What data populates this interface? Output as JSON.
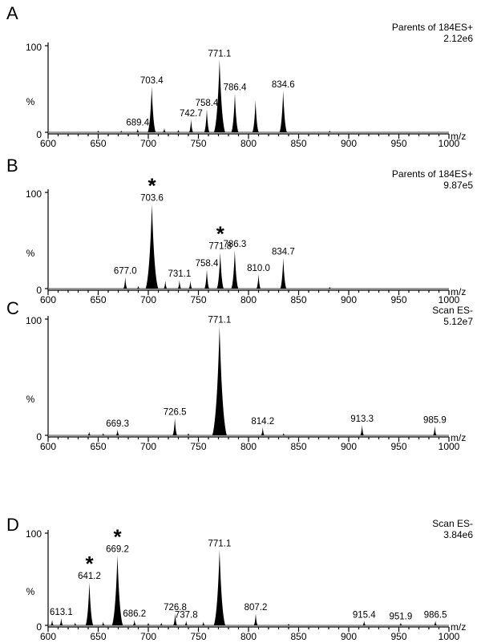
{
  "chart_data": [
    {
      "type": "mass-spectrum",
      "panel": "A",
      "header": "Parents of 184ES+",
      "intensity": "2.12e6",
      "xlabel": "m/z",
      "ylabel": "%",
      "xlim": [
        600,
        1000
      ],
      "ylim": [
        0,
        100
      ],
      "x_ticks": [
        "600",
        "650",
        "700",
        "750",
        "800",
        "850",
        "900",
        "950",
        "1000"
      ],
      "y_ticks": [
        "0",
        "100"
      ],
      "peaks": [
        {
          "x": 650,
          "y": 2
        },
        {
          "x": 673,
          "y": 2
        },
        {
          "x": 689.4,
          "y": 4,
          "label": "689.4"
        },
        {
          "x": 703.4,
          "y": 53,
          "label": "703.4"
        },
        {
          "x": 716,
          "y": 5
        },
        {
          "x": 730,
          "y": 3
        },
        {
          "x": 742.7,
          "y": 15,
          "label": "742.7"
        },
        {
          "x": 758.4,
          "y": 27,
          "label": "758.4"
        },
        {
          "x": 771.1,
          "y": 84,
          "label": "771.1"
        },
        {
          "x": 786.4,
          "y": 45,
          "label": "786.4"
        },
        {
          "x": 807,
          "y": 37
        },
        {
          "x": 834.6,
          "y": 48,
          "label": "834.6"
        },
        {
          "x": 881,
          "y": 2
        }
      ],
      "stars": []
    },
    {
      "type": "mass-spectrum",
      "panel": "B",
      "header": "Parents of 184ES+",
      "intensity": "9.87e5",
      "xlabel": "m/z",
      "ylabel": "%",
      "xlim": [
        600,
        1000
      ],
      "ylim": [
        0,
        100
      ],
      "x_ticks": [
        "600",
        "650",
        "700",
        "750",
        "800",
        "850",
        "900",
        "950",
        "1000"
      ],
      "y_ticks": [
        "0",
        "100"
      ],
      "peaks": [
        {
          "x": 677.0,
          "y": 12,
          "label": "677.0"
        },
        {
          "x": 690,
          "y": 3
        },
        {
          "x": 703.6,
          "y": 88,
          "label": "703.6"
        },
        {
          "x": 717,
          "y": 8
        },
        {
          "x": 731.1,
          "y": 9,
          "label": "731.1"
        },
        {
          "x": 742,
          "y": 8
        },
        {
          "x": 758.4,
          "y": 20,
          "label": "758.4"
        },
        {
          "x": 771.8,
          "y": 38,
          "label": "771.8"
        },
        {
          "x": 786.3,
          "y": 40,
          "label": "786.3"
        },
        {
          "x": 810.0,
          "y": 15,
          "label": "810.0"
        },
        {
          "x": 834.7,
          "y": 32,
          "label": "834.7"
        },
        {
          "x": 881,
          "y": 2
        }
      ],
      "stars": [
        703.6,
        771.8
      ]
    },
    {
      "type": "mass-spectrum",
      "panel": "C",
      "header": "Scan ES-",
      "intensity": "5.12e7",
      "xlabel": "m/z",
      "ylabel": "%",
      "xlim": [
        600,
        1000
      ],
      "ylim": [
        0,
        100
      ],
      "x_ticks": [
        "600",
        "650",
        "700",
        "750",
        "800",
        "850",
        "900",
        "950",
        "1000"
      ],
      "y_ticks": [
        "0",
        "100"
      ],
      "peaks": [
        {
          "x": 641,
          "y": 3
        },
        {
          "x": 655,
          "y": 2
        },
        {
          "x": 669.3,
          "y": 5,
          "label": "669.3"
        },
        {
          "x": 726.5,
          "y": 15,
          "label": "726.5"
        },
        {
          "x": 740,
          "y": 2
        },
        {
          "x": 771.1,
          "y": 94,
          "label": "771.1"
        },
        {
          "x": 814.2,
          "y": 7,
          "label": "814.2"
        },
        {
          "x": 835,
          "y": 2
        },
        {
          "x": 913.3,
          "y": 9,
          "label": "913.3"
        },
        {
          "x": 985.9,
          "y": 8,
          "label": "985.9"
        }
      ],
      "stars": []
    },
    {
      "type": "mass-spectrum",
      "panel": "D",
      "header": "Scan ES-",
      "intensity": "3.84e6",
      "xlabel": "m/z",
      "ylabel": "%",
      "xlim": [
        600,
        1000
      ],
      "ylim": [
        0,
        100
      ],
      "x_ticks": [
        "600",
        "650",
        "700",
        "750",
        "800",
        "850",
        "900",
        "950",
        "1000"
      ],
      "y_ticks": [
        "0",
        "100"
      ],
      "peaks": [
        {
          "x": 604,
          "y": 6
        },
        {
          "x": 613.1,
          "y": 8,
          "label": "613.1"
        },
        {
          "x": 627,
          "y": 3
        },
        {
          "x": 641.2,
          "y": 47,
          "label": "641.2"
        },
        {
          "x": 655,
          "y": 4
        },
        {
          "x": 669.2,
          "y": 76,
          "label": "669.2"
        },
        {
          "x": 686.2,
          "y": 6,
          "label": "686.2"
        },
        {
          "x": 700,
          "y": 3
        },
        {
          "x": 713,
          "y": 3
        },
        {
          "x": 726.8,
          "y": 13,
          "label": "726.8"
        },
        {
          "x": 737.8,
          "y": 5,
          "label": "737.8"
        },
        {
          "x": 755,
          "y": 4
        },
        {
          "x": 771.1,
          "y": 82,
          "label": "771.1"
        },
        {
          "x": 807.2,
          "y": 13,
          "label": "807.2"
        },
        {
          "x": 840,
          "y": 2
        },
        {
          "x": 915.4,
          "y": 5,
          "label": "915.4"
        },
        {
          "x": 951.9,
          "y": 3,
          "label": "951.9"
        },
        {
          "x": 986.5,
          "y": 5,
          "label": "986.5"
        }
      ],
      "stars": [
        641.2,
        669.2
      ]
    }
  ]
}
